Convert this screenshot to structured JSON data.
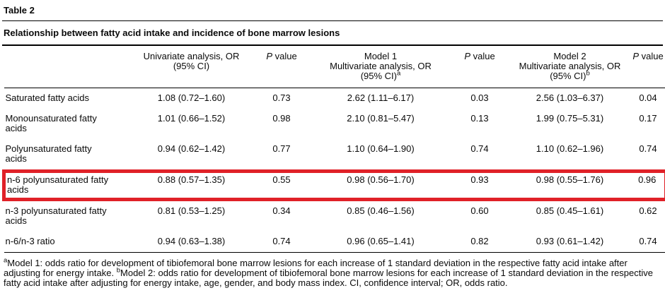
{
  "table_label": "Table 2",
  "table_title": "Relationship between fatty acid intake and incidence of bone marrow lesions",
  "highlight_color": "#e02128",
  "table": {
    "columns": [
      {
        "name": "fatty-acid",
        "lines": []
      },
      {
        "name": "univariate-or",
        "lines": [
          "Univariate analysis, OR",
          "(95% CI)"
        ]
      },
      {
        "name": "p-value-univariate",
        "italic": "P",
        "after": " value"
      },
      {
        "name": "model1-or",
        "lines": [
          "Model 1",
          "Multivariate analysis, OR",
          "(95% CI)"
        ],
        "sup": "a"
      },
      {
        "name": "p-value-model1",
        "italic": "P",
        "after": " value"
      },
      {
        "name": "model2-or",
        "lines": [
          "Model 2",
          "Multivariate analysis, OR",
          "(95% CI)"
        ],
        "sup": "b"
      },
      {
        "name": "p-value-model2",
        "italic": "P",
        "after": " value"
      }
    ],
    "rows": [
      {
        "label": "Saturated fatty acids",
        "values": [
          "1.08 (0.72–1.60)",
          "0.73",
          "2.62 (1.11–6.17)",
          "0.03",
          "2.56 (1.03–6.37)",
          "0.04"
        ],
        "highlighted": false
      },
      {
        "label": "Monounsaturated fatty acids",
        "values": [
          "1.01 (0.66–1.52)",
          "0.98",
          "2.10 (0.81–5.47)",
          "0.13",
          "1.99 (0.75–5.31)",
          "0.17"
        ],
        "highlighted": false
      },
      {
        "label": "Polyunsaturated fatty acids",
        "values": [
          "0.94 (0.62–1.42)",
          "0.77",
          "1.10 (0.64–1.90)",
          "0.74",
          "1.10 (0.62–1.96)",
          "0.74"
        ],
        "highlighted": false
      },
      {
        "label": "n-6 polyunsaturated fatty acids",
        "values": [
          "0.88 (0.57–1.35)",
          "0.55",
          "0.98 (0.56–1.70)",
          "0.93",
          "0.98 (0.55–1.76)",
          "0.96"
        ],
        "highlighted": true
      },
      {
        "label": "n-3 polyunsaturated fatty acids",
        "values": [
          "0.81 (0.53–1.25)",
          "0.34",
          "0.85 (0.46–1.56)",
          "0.60",
          "0.85 (0.45–1.61)",
          "0.62"
        ],
        "highlighted": false
      },
      {
        "label": "n-6/n-3 ratio",
        "values": [
          "0.94 (0.63–1.38)",
          "0.74",
          "0.96 (0.65–1.41)",
          "0.82",
          "0.93 (0.61–1.42)",
          "0.74"
        ],
        "highlighted": false
      }
    ]
  },
  "footnote": {
    "sup_a": "a",
    "model1": "Model 1: odds ratio for development of tibiofemoral bone marrow lesions for each increase of 1 standard deviation in the respective fatty acid intake after adjusting for energy intake. ",
    "sup_b": "b",
    "model2": "Model 2: odds ratio for development of tibiofemoral bone marrow lesions for each increase of 1 standard deviation in the respective fatty acid intake after adjusting for energy intake, age, gender, and body mass index. ",
    "abbreviations": "CI, confidence interval; OR, odds ratio."
  }
}
